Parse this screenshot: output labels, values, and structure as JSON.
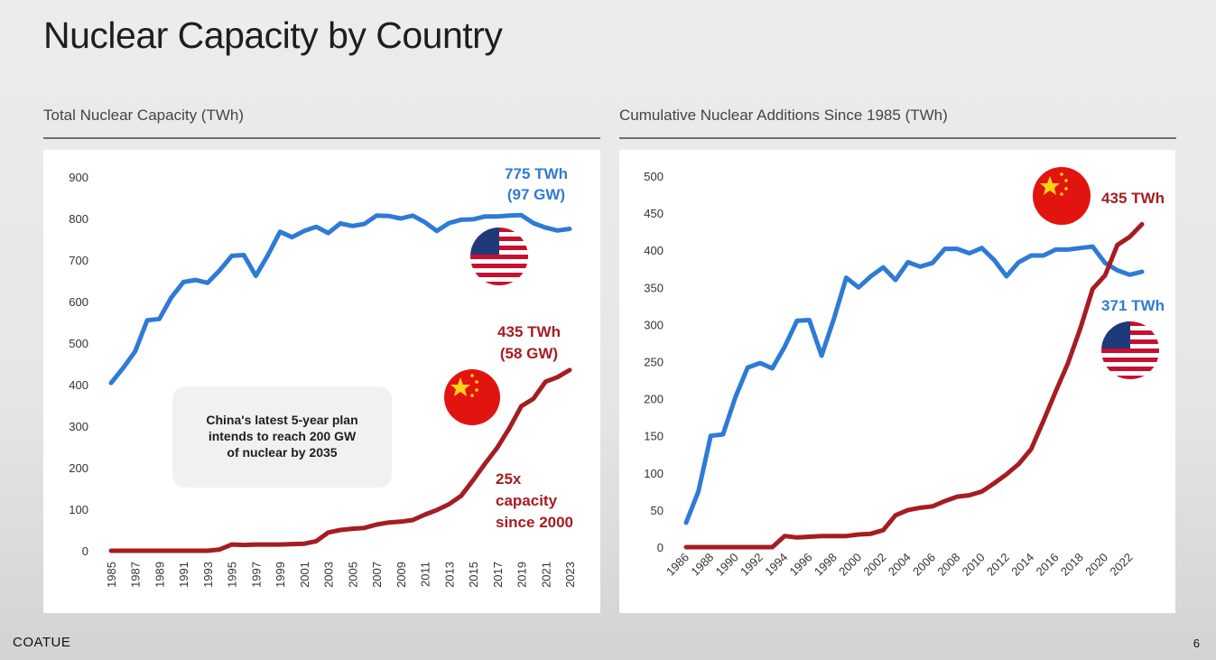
{
  "page": {
    "title": "Nuclear Capacity by Country",
    "brand": "COATUE",
    "page_number": "6"
  },
  "colors": {
    "us": "#2f7ad6",
    "china": "#a51d22",
    "flag_red": "#e2140f",
    "flag_star": "#ffd21a"
  },
  "chart_data": [
    {
      "type": "line",
      "title": "Total Nuclear Capacity (TWh)",
      "ylim": [
        0,
        900
      ],
      "yticks": [
        "0",
        "100",
        "200",
        "300",
        "400",
        "500",
        "600",
        "700",
        "800",
        "900"
      ],
      "xticks": [
        "1985",
        "1987",
        "1989",
        "1991",
        "1993",
        "1995",
        "1997",
        "1999",
        "2001",
        "2003",
        "2005",
        "2007",
        "2009",
        "2011",
        "2013",
        "2015",
        "2017",
        "2019",
        "2021",
        "2023"
      ],
      "x": [
        1985,
        1986,
        1987,
        1988,
        1989,
        1990,
        1991,
        1992,
        1993,
        1994,
        1995,
        1996,
        1997,
        1998,
        1999,
        2000,
        2001,
        2002,
        2003,
        2004,
        2005,
        2006,
        2007,
        2008,
        2009,
        2010,
        2011,
        2012,
        2013,
        2014,
        2015,
        2016,
        2017,
        2018,
        2019,
        2020,
        2021,
        2022,
        2023
      ],
      "series": [
        {
          "name": "United States",
          "color": "#2f7ad6",
          "values": [
            404,
            440,
            480,
            555,
            558,
            610,
            647,
            652,
            645,
            675,
            710,
            712,
            662,
            712,
            768,
            755,
            770,
            780,
            765,
            788,
            782,
            787,
            807,
            806,
            800,
            807,
            791,
            770,
            789,
            797,
            798,
            805,
            805,
            807,
            808,
            789,
            778,
            771,
            775
          ]
        },
        {
          "name": "China",
          "color": "#a51d22",
          "values": [
            0,
            0,
            0,
            0,
            0,
            0,
            0,
            0,
            0,
            3,
            15,
            14,
            15,
            15,
            15,
            16,
            17,
            23,
            44,
            50,
            53,
            55,
            63,
            68,
            70,
            74,
            87,
            98,
            112,
            132,
            170,
            210,
            248,
            295,
            348,
            366,
            407,
            418,
            435
          ]
        }
      ],
      "annotations": {
        "us_value": "775 TWh",
        "us_gw": "(97 GW)",
        "cn_value": "435 TWh",
        "cn_gw": "(58 GW)",
        "growth_1": "25x",
        "growth_2": "capacity",
        "growth_3": "since 2000",
        "note_1": "China's latest 5-year plan",
        "note_2": "intends to reach 200 GW",
        "note_3": "of nuclear by 2035"
      }
    },
    {
      "type": "line",
      "title": "Cumulative Nuclear Additions Since 1985 (TWh)",
      "ylim": [
        0,
        500
      ],
      "yticks": [
        "0",
        "50",
        "100",
        "150",
        "200",
        "250",
        "300",
        "350",
        "400",
        "450",
        "500"
      ],
      "xticks": [
        "1986",
        "1988",
        "1990",
        "1992",
        "1994",
        "1996",
        "1998",
        "2000",
        "2002",
        "2004",
        "2006",
        "2008",
        "2010",
        "2012",
        "2014",
        "2016",
        "2018",
        "2020",
        "2022"
      ],
      "x": [
        1986,
        1987,
        1988,
        1989,
        1990,
        1991,
        1992,
        1993,
        1994,
        1995,
        1996,
        1997,
        1998,
        1999,
        2000,
        2001,
        2002,
        2003,
        2004,
        2005,
        2006,
        2007,
        2008,
        2009,
        2010,
        2011,
        2012,
        2013,
        2014,
        2015,
        2016,
        2017,
        2018,
        2019,
        2020,
        2021,
        2022,
        2023
      ],
      "series": [
        {
          "name": "United States",
          "color": "#2f7ad6",
          "values": [
            33,
            75,
            150,
            152,
            202,
            242,
            248,
            241,
            270,
            305,
            306,
            258,
            308,
            363,
            350,
            365,
            377,
            360,
            384,
            378,
            383,
            402,
            402,
            396,
            403,
            387,
            365,
            384,
            393,
            393,
            401,
            401,
            403,
            405,
            383,
            373,
            367,
            371
          ]
        },
        {
          "name": "China",
          "color": "#a51d22",
          "values": [
            0,
            0,
            0,
            0,
            0,
            0,
            0,
            0,
            15,
            13,
            14,
            15,
            15,
            15,
            17,
            18,
            23,
            43,
            50,
            53,
            55,
            62,
            68,
            70,
            75,
            86,
            98,
            112,
            132,
            170,
            210,
            248,
            295,
            348,
            366,
            407,
            418,
            435
          ]
        }
      ],
      "annotations": {
        "cn_value": "435 TWh",
        "us_value": "371 TWh"
      }
    }
  ]
}
